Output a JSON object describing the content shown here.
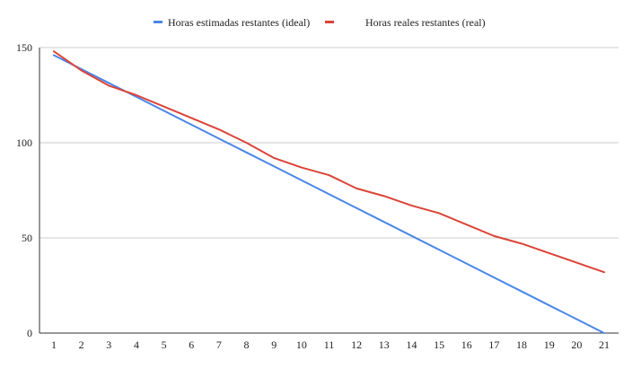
{
  "chart_data": {
    "type": "line",
    "title": "",
    "xlabel": "",
    "ylabel": "",
    "x": [
      1,
      2,
      3,
      4,
      5,
      6,
      7,
      8,
      9,
      10,
      11,
      12,
      13,
      14,
      15,
      16,
      17,
      18,
      19,
      20,
      21
    ],
    "ylim": [
      0,
      150
    ],
    "yticks": [
      0,
      50,
      100,
      150
    ],
    "grid": true,
    "legend_position": "top",
    "series": [
      {
        "name": "Horas estimadas restantes (ideal)",
        "color": "#4a86e8",
        "values": [
          146,
          138.7,
          131.4,
          124.1,
          116.8,
          109.5,
          102.2,
          94.9,
          87.6,
          80.3,
          73,
          65.7,
          58.4,
          51.1,
          43.8,
          36.5,
          29.2,
          21.9,
          14.6,
          7.3,
          0
        ]
      },
      {
        "name": "Horas reales restantes (real)",
        "color": "#db4437",
        "values": [
          148,
          138,
          130,
          125,
          119,
          113,
          107,
          100,
          92,
          87,
          83,
          76,
          72,
          67,
          63,
          57,
          51,
          47,
          42,
          37,
          32
        ]
      }
    ]
  }
}
